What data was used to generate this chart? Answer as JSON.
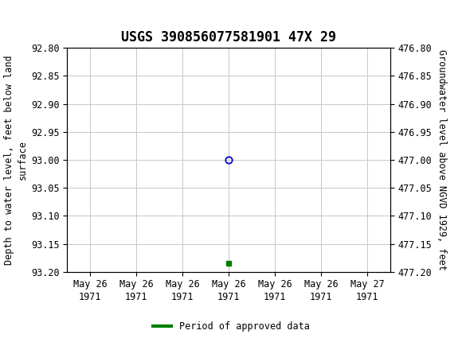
{
  "title": "USGS 390856077581901 47X 29",
  "ylabel_left": "Depth to water level, feet below land\nsurface",
  "ylabel_right": "Groundwater level above NGVD 1929, feet",
  "ylim_left": [
    92.8,
    93.2
  ],
  "ylim_right": [
    476.8,
    477.2
  ],
  "yticks_left": [
    92.8,
    92.85,
    92.9,
    92.95,
    93.0,
    93.05,
    93.1,
    93.15,
    93.2
  ],
  "yticks_right": [
    477.2,
    477.15,
    477.1,
    477.05,
    477.0,
    476.95,
    476.9,
    476.85,
    476.8
  ],
  "data_point_x": 3.0,
  "data_point_y": 93.0,
  "data_marker_x": 3.0,
  "data_marker_y": 93.185,
  "x_tick_labels": [
    "May 26\n1971",
    "May 26\n1971",
    "May 26\n1971",
    "May 26\n1971",
    "May 26\n1971",
    "May 26\n1971",
    "May 27\n1971"
  ],
  "x_ticks": [
    0,
    1,
    2,
    3,
    4,
    5,
    6
  ],
  "xlim": [
    -0.5,
    6.5
  ],
  "header_color": "#1a6b3a",
  "background_color": "#ffffff",
  "grid_color": "#c8c8c8",
  "circle_color": "#0000cc",
  "marker_color": "#008000",
  "legend_label": "Period of approved data",
  "title_fontsize": 12,
  "tick_fontsize": 8.5,
  "label_fontsize": 8.5
}
